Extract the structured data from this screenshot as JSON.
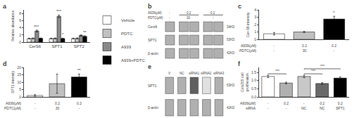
{
  "chart_data": [
    {
      "type": "bar",
      "title": "a",
      "categories": [
        "CerS6",
        "SPT1",
        "SPT2"
      ],
      "series": [
        {
          "name": "Vehicle",
          "color": "#ffffff",
          "values": [
            1.0,
            1.0,
            1.0
          ],
          "errors": [
            0.12,
            0.12,
            0.12
          ]
        },
        {
          "name": "PDTC",
          "color": "#c0c0c0",
          "values": [
            1.05,
            1.05,
            1.05
          ],
          "errors": [
            0.12,
            0.12,
            0.12
          ]
        },
        {
          "name": "A939",
          "color": "#888888",
          "values": [
            3.1,
            7.2,
            1.85
          ],
          "errors": [
            0.25,
            0.35,
            0.18
          ]
        },
        {
          "name": "A939+PDTC",
          "color": "#000000",
          "values": [
            1.05,
            1.0,
            1.6
          ],
          "errors": [
            0.12,
            0.12,
            0.18
          ]
        }
      ],
      "ylabel": "Relative abundance",
      "ylim": [
        0,
        9
      ],
      "yticks": [
        0,
        2,
        4,
        6,
        8
      ],
      "grid": false,
      "legend": "right",
      "annotations": [
        {
          "text": "***",
          "category": "CerS6",
          "series": "A939"
        },
        {
          "text": "***",
          "category": "SPT1",
          "series": "A939"
        },
        {
          "text": "*",
          "category": "SPT1",
          "series": "A939+PDTC"
        },
        {
          "text": "**",
          "category": "SPT2",
          "series": "A939+PDTC"
        }
      ]
    },
    {
      "type": "blot",
      "title": "b",
      "xlabel": "A939(μM)\nPDTC(μM)",
      "categories": [
        "-\n-",
        "0.2\n30",
        "0.2\n-"
      ],
      "lanes": [
        1,
        2,
        2
      ],
      "series": [
        {
          "name": "Cers6",
          "label": "34KD",
          "color": "#b0b0b0"
        },
        {
          "name": "SPT1",
          "label": "53KD",
          "color": "#b0b0b0"
        },
        {
          "name": "β-actin",
          "label": "42KD",
          "color": "#b0b0b0"
        }
      ]
    },
    {
      "type": "bar",
      "title": "c",
      "xlabel": "A939(μM)\nPDTC(μM)",
      "categories": [
        "-\n-",
        "0.2\n30",
        "0.2\n-"
      ],
      "values": [
        0.75,
        1.0,
        2.75
      ],
      "errors": [
        0.18,
        0.08,
        0.38
      ],
      "colors": [
        "#ffffff",
        "#c0c0c0",
        "#000000"
      ],
      "ylabel": "Cer-S6 intensity",
      "ylim": [
        0,
        4
      ],
      "yticks": [
        0,
        1,
        2,
        3,
        4
      ],
      "grid": false,
      "annotations": [
        {
          "text": "*",
          "category": "0.2\n-"
        }
      ]
    },
    {
      "type": "bar",
      "title": "d",
      "xlabel": "A939(μM)\nPDTC(μM)",
      "categories": [
        "-\n-",
        "0.2\n30",
        "0.2\n-"
      ],
      "values": [
        1.0,
        9.0,
        13.5
      ],
      "errors": [
        0.5,
        6.5,
        2.0
      ],
      "colors": [
        "#ffffff",
        "#c0c0c0",
        "#000000"
      ],
      "ylabel": "SPT1 intensity",
      "ylim": [
        0,
        20
      ],
      "yticks": [
        0,
        5,
        10,
        15,
        20
      ],
      "grid": false,
      "annotations": [
        {
          "text": "**",
          "category": "0.2\n-"
        }
      ]
    },
    {
      "type": "blot",
      "title": "e",
      "categories": [
        "V",
        "NC",
        "siRNA1",
        "siRNA2",
        "siRNA3"
      ],
      "series": [
        {
          "name": "SPT1",
          "label": "53KD",
          "colors": [
            "#b0b0b0",
            "#b0b0b0",
            "#606060",
            "#e0e0e0",
            "#b0b0b0"
          ]
        },
        {
          "name": "β-actin",
          "label": "42KD",
          "color": "#b0b0b0"
        }
      ]
    },
    {
      "type": "bar",
      "title": "f",
      "xlabel": "A939(μM)\nsiRNA",
      "categories": [
        "-\n-",
        "0.2\n-",
        "-\nNC",
        "0.2\nNC",
        "0.2\nSPT1"
      ],
      "values": [
        1.25,
        0.85,
        1.25,
        0.82,
        1.15
      ],
      "errors": [
        0.07,
        0.05,
        0.07,
        0.05,
        0.07
      ],
      "colors": [
        "#ffffff",
        "#b0b0b0",
        "#c8c8c8",
        "#686868",
        "#000000"
      ],
      "ylabel": "Colo205 cell\nproliferation",
      "ylim": [
        0.0,
        1.8
      ],
      "yticks": [
        {
          "value": 0.0,
          "label": "0.0"
        },
        {
          "value": 0.5,
          "label": "0.5"
        },
        {
          "value": 1.0,
          "label": "1.0"
        },
        {
          "value": 1.5,
          "label": "1.5"
        }
      ],
      "grid": false,
      "annotations": [
        {
          "text": "***",
          "from": "-\n-",
          "to": "0.2\n-"
        },
        {
          "text": "***",
          "from": "-\nNC",
          "to": "0.2\nNC"
        },
        {
          "text": "***",
          "from": "-\nNC",
          "to": "0.2\nSPT1"
        }
      ]
    }
  ]
}
